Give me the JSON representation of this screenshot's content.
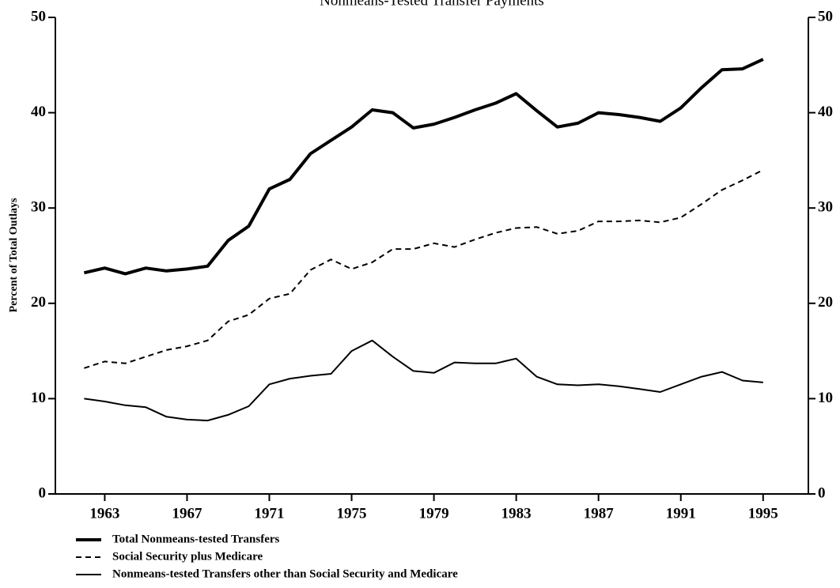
{
  "chart_data": {
    "type": "line",
    "title": "Nonmeans-Tested Transfer Payments",
    "y_label": "Percent of Total Outlays",
    "x": [
      1962,
      1963,
      1964,
      1965,
      1966,
      1967,
      1968,
      1969,
      1970,
      1971,
      1972,
      1973,
      1974,
      1975,
      1976,
      1977,
      1978,
      1979,
      1980,
      1981,
      1982,
      1983,
      1984,
      1985,
      1986,
      1987,
      1988,
      1989,
      1990,
      1991,
      1992,
      1993,
      1994,
      1995
    ],
    "series": [
      {
        "name": "Total Nonmeans-tested Transfers",
        "color": "#000000",
        "dash": "solid",
        "width": 4,
        "values": [
          23.2,
          23.7,
          23.1,
          23.7,
          23.4,
          23.6,
          23.9,
          26.6,
          28.1,
          32.0,
          33.0,
          35.7,
          37.1,
          38.5,
          40.3,
          40.0,
          38.4,
          38.8,
          39.5,
          40.3,
          41.0,
          42.0,
          40.2,
          38.5,
          38.9,
          40.0,
          39.8,
          39.5,
          39.1,
          40.5,
          42.6,
          44.5,
          44.6,
          45.6
        ]
      },
      {
        "name": "Social Security plus Medicare",
        "color": "#000000",
        "dash": "dashed",
        "width": 2,
        "values": [
          13.2,
          13.9,
          13.7,
          14.4,
          15.1,
          15.5,
          16.1,
          18.1,
          18.8,
          20.5,
          21.0,
          23.5,
          24.6,
          23.6,
          24.3,
          25.7,
          25.7,
          26.3,
          25.9,
          26.7,
          27.4,
          27.9,
          28.0,
          27.3,
          27.6,
          28.6,
          28.6,
          28.7,
          28.5,
          29.0,
          30.4,
          31.9,
          32.9,
          34.0
        ]
      },
      {
        "name": "Nonmeans-tested Transfers other than Social Security and Medicare",
        "color": "#000000",
        "dash": "solid",
        "width": 2,
        "values": [
          10.0,
          9.7,
          9.3,
          9.1,
          8.1,
          7.8,
          7.7,
          8.3,
          9.2,
          11.5,
          12.1,
          12.4,
          12.6,
          15.0,
          16.1,
          14.4,
          12.9,
          12.7,
          13.8,
          13.7,
          13.7,
          14.2,
          12.3,
          11.5,
          11.4,
          11.5,
          11.3,
          11.0,
          10.7,
          11.5,
          12.3,
          12.8,
          11.9,
          11.7
        ]
      }
    ],
    "xlim": [
      1960.6,
      1997.2
    ],
    "xticks": [
      1963,
      1967,
      1971,
      1975,
      1979,
      1983,
      1987,
      1991,
      1995
    ],
    "ylim": [
      0,
      50
    ],
    "yticks": [
      0,
      10,
      20,
      30,
      40,
      50
    ],
    "y2lim": [
      0,
      50
    ],
    "y2ticks": [
      0,
      10,
      20,
      30,
      40,
      50
    ],
    "grid": false,
    "legend": "bottom-left"
  }
}
